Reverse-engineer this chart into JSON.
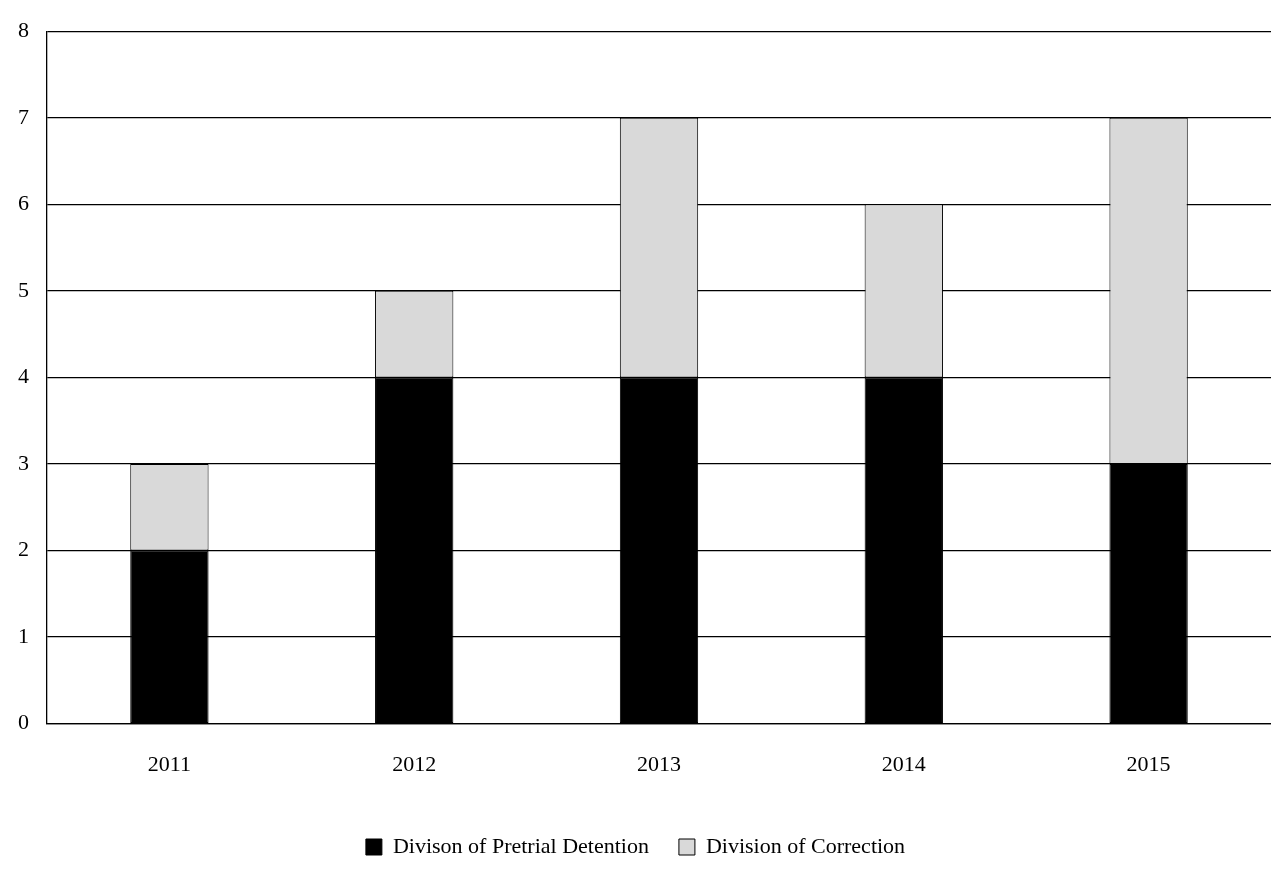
{
  "chart_data": {
    "type": "bar",
    "stacked": true,
    "categories": [
      "2011",
      "2012",
      "2013",
      "2014",
      "2015"
    ],
    "series": [
      {
        "name": "Divison of Pretrial Detention",
        "color": "#000000",
        "values": [
          2,
          4,
          4,
          4,
          3
        ]
      },
      {
        "name": "Division of Correction",
        "color": "#d9d9d9",
        "values": [
          1,
          1,
          3,
          2,
          4
        ]
      }
    ],
    "ylim": [
      0,
      8
    ],
    "yticks": [
      0,
      1,
      2,
      3,
      4,
      5,
      6,
      7,
      8
    ],
    "grid": "y",
    "legend": "bottom"
  }
}
